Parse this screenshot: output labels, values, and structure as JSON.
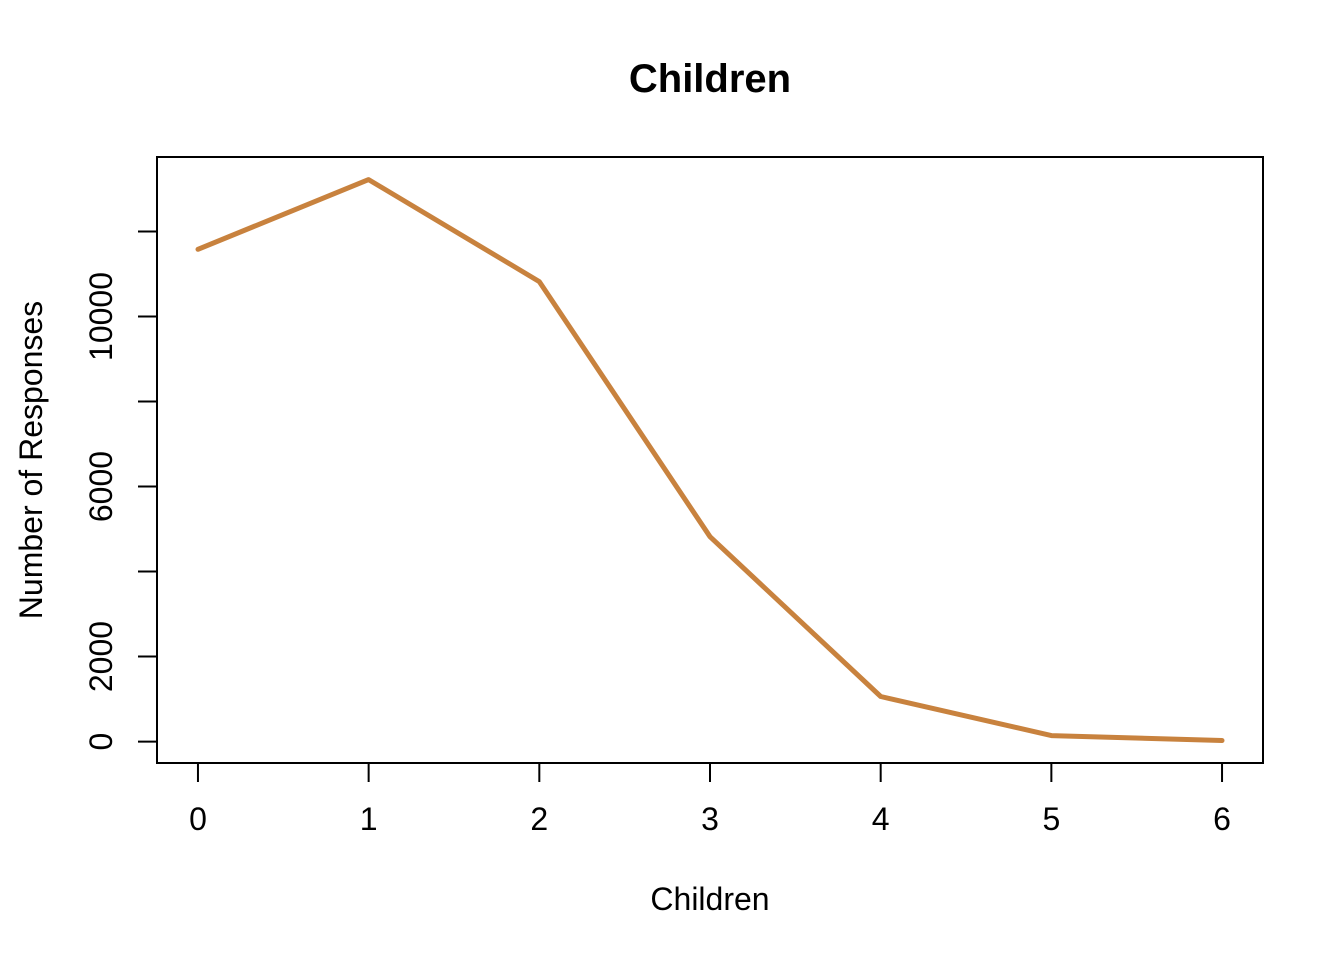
{
  "chart_data": {
    "type": "line",
    "title": "Children",
    "xlabel": "Children",
    "ylabel": "Number of Responses",
    "x": [
      0,
      1,
      2,
      3,
      4,
      5,
      6
    ],
    "series": [
      {
        "name": "Number of Responses",
        "values": [
          11580,
          13220,
          10820,
          4820,
          1060,
          140,
          25
        ]
      }
    ],
    "x_tick_labels": [
      "0",
      "1",
      "2",
      "3",
      "4",
      "5",
      "6"
    ],
    "y_ticks": [
      0,
      2000,
      4000,
      6000,
      8000,
      10000,
      12000
    ],
    "y_tick_labels": [
      "0",
      "2000",
      "",
      "6000",
      "",
      "10000",
      ""
    ],
    "xlim": [
      -0.24,
      6.24
    ],
    "ylim": [
      -504,
      13752
    ],
    "grid": false,
    "legend_position": "none",
    "line_color": "#C8823E",
    "axis_color": "#000000",
    "background_color": "#FFFFFF"
  }
}
